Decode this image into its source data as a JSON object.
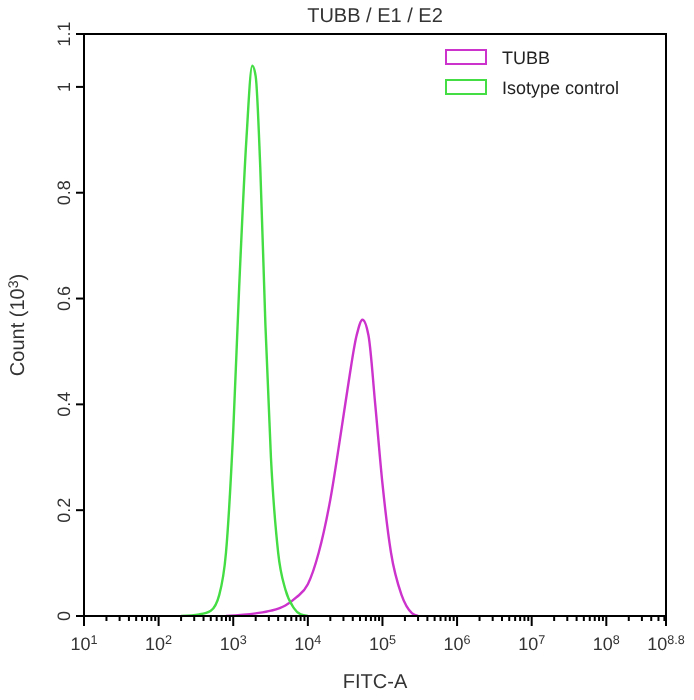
{
  "chart_data": {
    "type": "line",
    "title": "TUBB / E1 / E2",
    "xlabel": "FITC-A",
    "ylabel": "Count (10$^{3}$)",
    "log": "x",
    "xlim": [
      10,
      630957344
    ],
    "xticks": [
      {
        "value": 10,
        "label": "10$^{1}$"
      },
      {
        "value": 100,
        "label": "10$^{2}$"
      },
      {
        "value": 1000,
        "label": "10$^{3}$"
      },
      {
        "value": 10000,
        "label": "10$^{4}$"
      },
      {
        "value": 100000,
        "label": "10$^{5}$"
      },
      {
        "value": 1000000,
        "label": "10$^{6}$"
      },
      {
        "value": 10000000,
        "label": "10$^{7}$"
      },
      {
        "value": 100000000,
        "label": "10$^{8}$"
      },
      {
        "value": 630957344,
        "label": "10$^{8.8}$"
      }
    ],
    "ylim": [
      0,
      1.1
    ],
    "yticks": [
      0,
      0.2,
      0.4,
      0.6,
      0.8,
      1,
      1.1
    ],
    "grid": false,
    "legend": "top right",
    "marker": "none",
    "line_style": "solid",
    "series": [
      {
        "name": "TUBB",
        "color": "#cc33cc",
        "x": [
          800,
          2000,
          3200,
          5000,
          7000,
          10000,
          14000,
          20000,
          28000,
          35000,
          45000,
          54000,
          65000,
          80000,
          100000,
          130000,
          180000,
          250000,
          300000
        ],
        "values": [
          0,
          0.005,
          0.01,
          0.02,
          0.035,
          0.06,
          0.12,
          0.22,
          0.35,
          0.44,
          0.53,
          0.56,
          0.53,
          0.4,
          0.25,
          0.12,
          0.04,
          0.005,
          0
        ]
      },
      {
        "name": "Isotype control",
        "color": "#44dd44",
        "x": [
          200,
          350,
          500,
          650,
          800,
          1000,
          1200,
          1500,
          1800,
          2000,
          2300,
          2700,
          3200,
          4000,
          5000,
          6500,
          8000,
          10000
        ],
        "values": [
          0,
          0.003,
          0.01,
          0.04,
          0.12,
          0.35,
          0.62,
          0.9,
          1.04,
          1.02,
          0.85,
          0.55,
          0.3,
          0.12,
          0.05,
          0.015,
          0.003,
          0
        ]
      }
    ]
  }
}
